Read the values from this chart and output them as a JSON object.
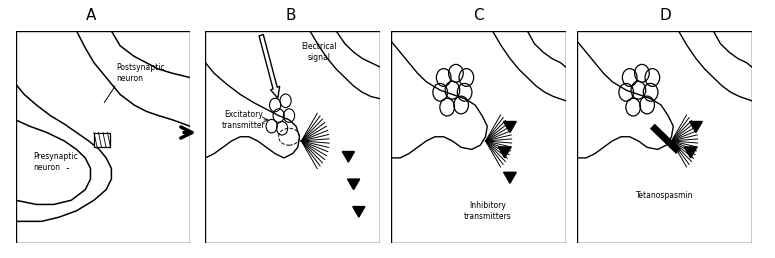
{
  "background_color": "#ffffff",
  "panel_labels": [
    "A",
    "B",
    "C",
    "D"
  ],
  "panel_A": {
    "label_postsynaptic": "Postsynaptic\nneuron",
    "label_presynaptic": "Presynaptic\nneuron"
  },
  "panel_B": {
    "label_electrical": "Electrical\nsignal",
    "label_excitatory": "Excitatory\ntransmitter"
  },
  "panel_C": {
    "label_inhibitory": "Inhibitory\ntransmitters"
  },
  "panel_D": {
    "label_tetano": "Tetanospasmin"
  }
}
